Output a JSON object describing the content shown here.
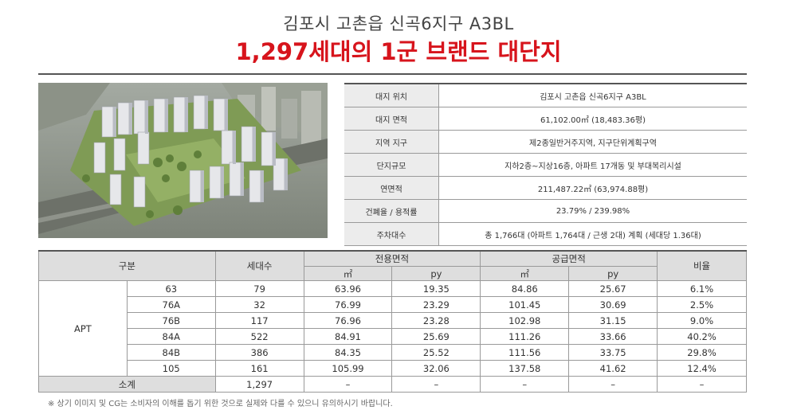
{
  "header": {
    "title": "김포시 고촌읍 신곡6지구 A3BL",
    "headline": "1,297세대의 1군 브랜드 대단지"
  },
  "info_table": [
    {
      "label": "대지 위치",
      "value": "김포시 고촌읍 신곡6지구 A3BL"
    },
    {
      "label": "대지 면적",
      "value": "61,102.00㎡ (18,483.36평)"
    },
    {
      "label": "지역 지구",
      "value": "제2종일반거주지역, 지구단위계획구역"
    },
    {
      "label": "단지규모",
      "value": "지하2층~지상16층, 아파트 17개동 및 부대복리시설"
    },
    {
      "label": "연면적",
      "value": "211,487.22㎡ (63,974.88평)"
    },
    {
      "label": "건폐율 / 용적률",
      "value": "23.79% / 239.98%"
    },
    {
      "label": "주차대수",
      "value": "총 1,766대 (아파트 1,764대 / 근생 2대) 계획 (세대당 1.36대)"
    }
  ],
  "unit_table": {
    "headers": {
      "category": "구분",
      "households": "세대수",
      "exclusive_area": "전용면적",
      "supply_area": "공급면적",
      "ratio": "비율",
      "sqm": "㎡",
      "py": "py"
    },
    "group_label": "APT",
    "rows": [
      {
        "type": "63",
        "households": "79",
        "ex_sqm": "63.96",
        "ex_py": "19.35",
        "sup_sqm": "84.86",
        "sup_py": "25.67",
        "ratio": "6.1%"
      },
      {
        "type": "76A",
        "households": "32",
        "ex_sqm": "76.99",
        "ex_py": "23.29",
        "sup_sqm": "101.45",
        "sup_py": "30.69",
        "ratio": "2.5%"
      },
      {
        "type": "76B",
        "households": "117",
        "ex_sqm": "76.96",
        "ex_py": "23.28",
        "sup_sqm": "102.98",
        "sup_py": "31.15",
        "ratio": "9.0%"
      },
      {
        "type": "84A",
        "households": "522",
        "ex_sqm": "84.91",
        "ex_py": "25.69",
        "sup_sqm": "111.26",
        "sup_py": "33.66",
        "ratio": "40.2%"
      },
      {
        "type": "84B",
        "households": "386",
        "ex_sqm": "84.35",
        "ex_py": "25.52",
        "sup_sqm": "111.56",
        "sup_py": "33.75",
        "ratio": "29.8%"
      },
      {
        "type": "105",
        "households": "161",
        "ex_sqm": "105.99",
        "ex_py": "32.06",
        "sup_sqm": "137.58",
        "sup_py": "41.62",
        "ratio": "12.4%"
      }
    ],
    "total": {
      "label": "소계",
      "households": "1,297",
      "ex_sqm": "–",
      "ex_py": "–",
      "sup_sqm": "–",
      "sup_py": "–",
      "ratio": "–"
    }
  },
  "note": "※ 상기 이미지 및 CG는 소비자의 이해를 돕기 위한 것으로 실제와 다를 수 있으니 유의하시기 바랍니다."
}
